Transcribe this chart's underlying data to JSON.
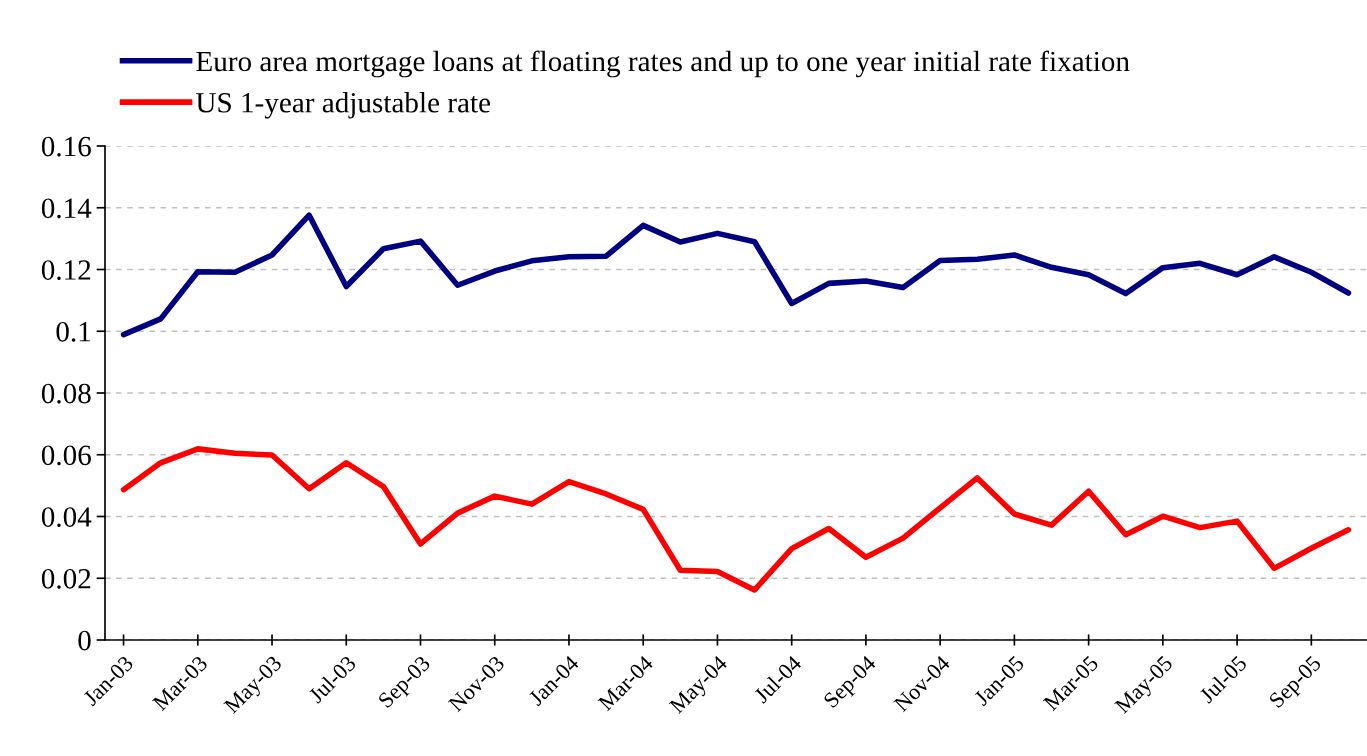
{
  "chart_data": {
    "type": "line",
    "categories": [
      "Jan-03",
      null,
      "Mar-03",
      null,
      "May-03",
      null,
      "Jul-03",
      null,
      "Sep-03",
      null,
      "Nov-03",
      null,
      "Jan-04",
      null,
      "Mar-04",
      null,
      "May-04",
      null,
      "Jul-04",
      null,
      "Sep-04",
      null,
      "Nov-04",
      null,
      "Jan-05",
      null,
      "Mar-05",
      null,
      "May-05",
      null,
      "Jul-05",
      null,
      "Sep-05",
      null
    ],
    "series": [
      {
        "name": "Euro area mortgage loans at floating rates and up to one year initial rate fixation",
        "color": "#000080",
        "values": [
          0.0989,
          0.104,
          0.1193,
          0.1191,
          0.1247,
          0.1376,
          0.1145,
          0.1267,
          0.1292,
          0.1149,
          0.1195,
          0.1228,
          0.1241,
          0.1243,
          0.1343,
          0.1289,
          0.1317,
          0.129,
          0.109,
          0.1155,
          0.1163,
          0.1142,
          0.1229,
          0.1233,
          0.1247,
          0.1207,
          0.1183,
          0.1122,
          0.1206,
          0.122,
          0.1183,
          0.1241,
          0.1191,
          0.1124
        ]
      },
      {
        "name": "US 1-year adjustable rate",
        "color": "#ff0000",
        "values": [
          0.0487,
          0.0574,
          0.0619,
          0.0605,
          0.0599,
          0.049,
          0.0574,
          0.0497,
          0.0311,
          0.0411,
          0.0466,
          0.044,
          0.0513,
          0.0473,
          0.0423,
          0.0226,
          0.0222,
          0.0162,
          0.0296,
          0.0361,
          0.0268,
          0.033,
          0.0428,
          0.0525,
          0.0408,
          0.0372,
          0.0482,
          0.0341,
          0.0401,
          0.0364,
          0.0385,
          0.0232,
          0.0297,
          0.0357
        ]
      }
    ],
    "ylim": [
      0,
      0.16
    ],
    "yticks": [
      0,
      {
        "value": 0.02,
        "label": "0.02"
      },
      {
        "value": 0.04,
        "label": "0.04"
      },
      {
        "value": 0.06,
        "label": "0.06"
      },
      {
        "value": 0.08,
        "label": "0.08"
      },
      {
        "value": 0.1,
        "label": "0.1"
      },
      {
        "value": 0.12,
        "label": "0.12"
      },
      {
        "value": 0.14,
        "label": "0.14"
      },
      {
        "value": 0.16,
        "label": "0.16"
      }
    ],
    "grid": "y",
    "legend": "top left",
    "marker": "none",
    "line_style": "solid"
  }
}
